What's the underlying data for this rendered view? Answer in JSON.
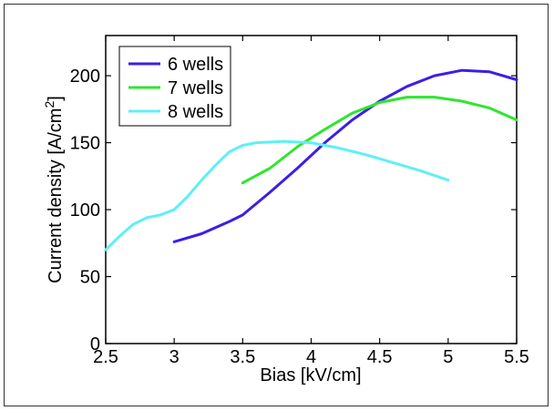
{
  "chart_data": {
    "type": "line",
    "title": "",
    "xlabel": "Bias [kV/cm]",
    "ylabel_main": "Current density [A/cm",
    "ylabel_sup": "2",
    "ylabel_end": "]",
    "xlim": [
      2.5,
      5.5
    ],
    "ylim": [
      0,
      230
    ],
    "xticks": [
      2.5,
      3,
      3.5,
      4,
      4.5,
      5,
      5.5
    ],
    "yticks": [
      0,
      50,
      100,
      150,
      200
    ],
    "grid": false,
    "legend_position": "top-left",
    "series": [
      {
        "name": "6 wells",
        "color": "#3c1ee6",
        "points": [
          [
            3.0,
            76
          ],
          [
            3.2,
            82
          ],
          [
            3.4,
            91
          ],
          [
            3.5,
            96
          ],
          [
            3.7,
            113
          ],
          [
            3.9,
            131
          ],
          [
            4.1,
            150
          ],
          [
            4.3,
            167
          ],
          [
            4.5,
            181
          ],
          [
            4.7,
            192
          ],
          [
            4.9,
            200
          ],
          [
            5.1,
            204
          ],
          [
            5.3,
            203
          ],
          [
            5.5,
            197
          ]
        ]
      },
      {
        "name": "7 wells",
        "color": "#2ee62e",
        "points": [
          [
            3.5,
            120
          ],
          [
            3.7,
            131
          ],
          [
            3.9,
            147
          ],
          [
            4.1,
            160
          ],
          [
            4.3,
            172
          ],
          [
            4.5,
            180
          ],
          [
            4.7,
            184
          ],
          [
            4.9,
            184
          ],
          [
            5.1,
            181
          ],
          [
            5.3,
            176
          ],
          [
            5.5,
            167
          ]
        ]
      },
      {
        "name": "8 wells",
        "color": "#5ef0f5",
        "points": [
          [
            2.5,
            70
          ],
          [
            2.6,
            80
          ],
          [
            2.7,
            89
          ],
          [
            2.8,
            94
          ],
          [
            2.9,
            96
          ],
          [
            3.0,
            100
          ],
          [
            3.1,
            110
          ],
          [
            3.2,
            122
          ],
          [
            3.3,
            133
          ],
          [
            3.4,
            143
          ],
          [
            3.5,
            148
          ],
          [
            3.6,
            150
          ],
          [
            3.8,
            151
          ],
          [
            4.0,
            150
          ],
          [
            4.2,
            146
          ],
          [
            4.4,
            141
          ],
          [
            4.6,
            135
          ],
          [
            4.8,
            129
          ],
          [
            5.0,
            122
          ]
        ]
      }
    ]
  }
}
